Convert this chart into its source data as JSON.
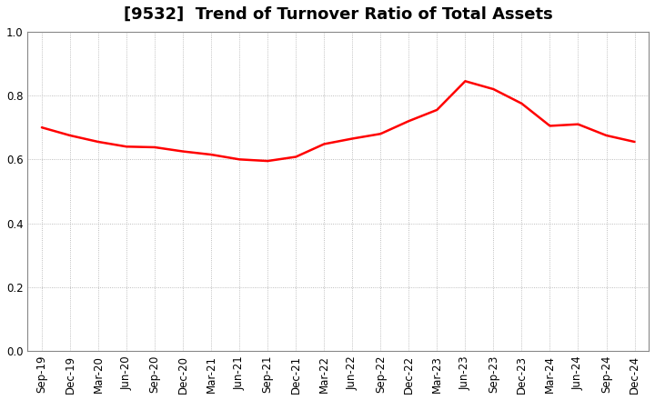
{
  "title": "[9532]  Trend of Turnover Ratio of Total Assets",
  "x_labels": [
    "Sep-19",
    "Dec-19",
    "Mar-20",
    "Jun-20",
    "Sep-20",
    "Dec-20",
    "Mar-21",
    "Jun-21",
    "Sep-21",
    "Dec-21",
    "Mar-22",
    "Jun-22",
    "Sep-22",
    "Dec-22",
    "Mar-23",
    "Jun-23",
    "Sep-23",
    "Dec-23",
    "Mar-24",
    "Jun-24",
    "Sep-24",
    "Dec-24"
  ],
  "y_values": [
    0.7,
    0.675,
    0.655,
    0.64,
    0.638,
    0.625,
    0.615,
    0.6,
    0.595,
    0.608,
    0.648,
    0.665,
    0.68,
    0.72,
    0.755,
    0.845,
    0.82,
    0.775,
    0.705,
    0.71,
    0.675,
    0.655
  ],
  "line_color": "#FF0000",
  "line_width": 1.8,
  "ylim": [
    0.0,
    1.0
  ],
  "yticks": [
    0.0,
    0.2,
    0.4,
    0.6,
    0.8,
    1.0
  ],
  "grid_color": "#aaaaaa",
  "grid_style": "dotted",
  "bg_color": "#ffffff",
  "title_fontsize": 13,
  "tick_fontsize": 8.5,
  "spine_color": "#888888"
}
